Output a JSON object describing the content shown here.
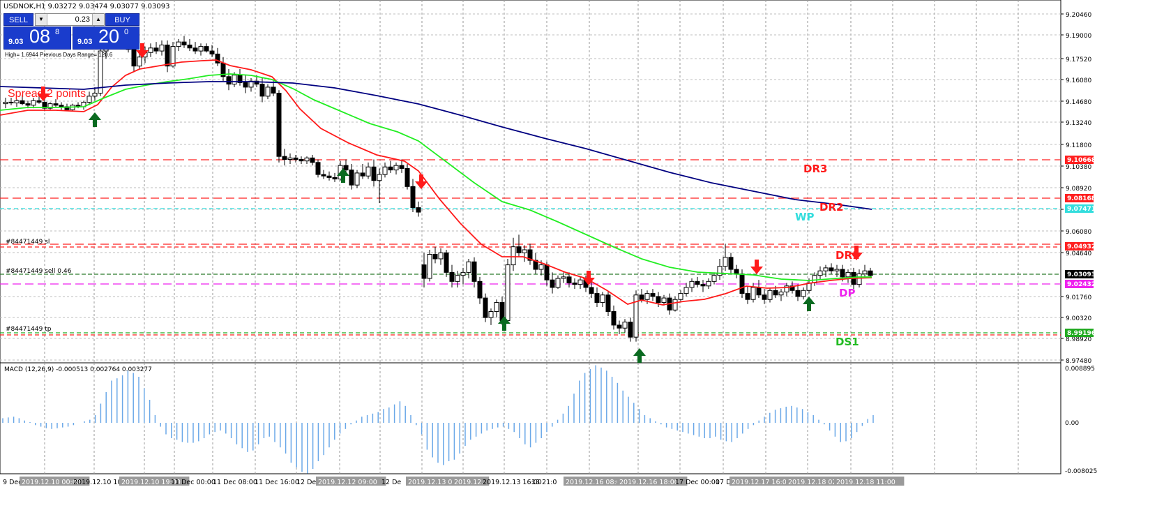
{
  "symbol_header": "USDNOK,H1  9.03272 9.03474 9.03077 9.03093",
  "trade_panel": {
    "sell_label": "SELL",
    "buy_label": "BUY",
    "lot_value": "0.23",
    "sell_price_small": "9.03",
    "sell_price_big": "08",
    "sell_price_sup": "8",
    "buy_price_small": "9.03",
    "buy_price_big": "20",
    "buy_price_sup": "0"
  },
  "info_line": "High= 1.6944    Previous Days Range= 120.6",
  "spread_text": "Spread 2 points",
  "price_axis": [
    "9.20460",
    "9.19000",
    "9.17520",
    "9.16080",
    "9.14680",
    "9.13240",
    "9.11800",
    "9.10380",
    "9.08920",
    "9.07500",
    "9.06080",
    "9.04640",
    "9.01760",
    "9.00320",
    "8.98920",
    "8.97480"
  ],
  "price_tags": [
    {
      "value": "9.10668",
      "bg": "#ff2020",
      "fg": "#ffffff"
    },
    {
      "value": "9.08168",
      "bg": "#ff2020",
      "fg": "#ffffff"
    },
    {
      "value": "9.07471",
      "bg": "#33dddd",
      "fg": "#ffffff"
    },
    {
      "value": "9.04932",
      "bg": "#ff2020",
      "fg": "#ffffff"
    },
    {
      "value": "9.03093",
      "bg": "#000000",
      "fg": "#ffffff"
    },
    {
      "value": "9.02432",
      "bg": "#ee22ee",
      "fg": "#ffffff"
    },
    {
      "value": "8.99196",
      "bg": "#22aa22",
      "fg": "#ffffff"
    }
  ],
  "levels": {
    "dr3": "DR3",
    "dr2": "DR2",
    "wp": "WP",
    "dr1": "DR1",
    "dp": "DP",
    "ds1": "DS1"
  },
  "order_lines": {
    "sl": "#84471449 sl",
    "sell": "#84471449 sell 0.46",
    "tp": "#84471449 tp"
  },
  "macd": {
    "header": "MACD (12,26,9) -0.000513 0.002764 0.003277",
    "axis_top": "0.008895",
    "axis_mid": "0.00",
    "axis_bottom": "-0.008025"
  },
  "time_axis": [
    {
      "text": "9 Dec",
      "boxed": false
    },
    {
      "text": "2019.12.10 00:00",
      "boxed": true
    },
    {
      "text": "2019.12.10 10:0",
      "boxed": false
    },
    {
      "text": "2019.12.10 19:00",
      "boxed": true
    },
    {
      "text": "11 Dec 00:00",
      "boxed": false
    },
    {
      "text": "11 Dec 08:00",
      "boxed": false
    },
    {
      "text": "11 Dec 16:00",
      "boxed": false
    },
    {
      "text": "12 Dec",
      "boxed": false
    },
    {
      "text": "2019.12.12 09:00",
      "boxed": true
    },
    {
      "text": "12 De",
      "boxed": false
    },
    {
      "text": "2019.12.13 00:00",
      "boxed": true
    },
    {
      "text": "2019.12.",
      "boxed": true
    },
    {
      "text": "2019.12.13 16:00",
      "boxed": false
    },
    {
      "text": "13 21:0",
      "boxed": false
    },
    {
      "text": "2019.12.16 08:00",
      "boxed": true
    },
    {
      "text": "2019.12.16 18:00",
      "boxed": true
    },
    {
      "text": "17 Dec 00:00",
      "boxed": false
    },
    {
      "text": "17 De",
      "boxed": false
    },
    {
      "text": "2019.12.17 16:00",
      "boxed": true
    },
    {
      "text": "2019.12.18 02:0",
      "boxed": true
    },
    {
      "text": "2019.12.18 11:00",
      "boxed": true
    }
  ],
  "colors": {
    "ma_fast": "#ff1a1a",
    "ma_mid": "#22ee22",
    "ma_slow": "#000080",
    "arrow_down": "#ff1a1a",
    "arrow_up": "#0a6a20",
    "macd_bars": "#6aa8e8"
  },
  "icons": {
    "arrow_down": "sell-signal-arrow-icon",
    "arrow_up": "buy-signal-arrow-icon"
  }
}
